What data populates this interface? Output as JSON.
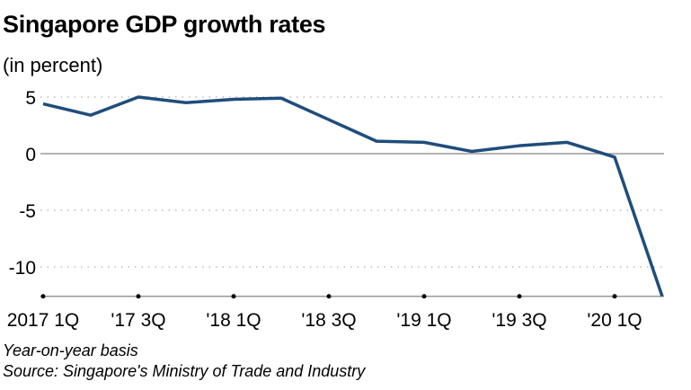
{
  "chart_data": {
    "type": "line",
    "title": "Singapore GDP growth rates",
    "subtitle": "(in percent)",
    "x": [
      "2017 1Q",
      "2017 2Q",
      "2017 3Q",
      "2017 4Q",
      "2018 1Q",
      "2018 2Q",
      "2018 3Q",
      "2018 4Q",
      "2019 1Q",
      "2019 2Q",
      "2019 3Q",
      "2019 4Q",
      "2020 1Q",
      "2020 2Q"
    ],
    "x_tick_labels": [
      "2017 1Q",
      "'17 3Q",
      "'18 1Q",
      "'18 3Q",
      "'19 1Q",
      "'19 3Q",
      "'20 1Q"
    ],
    "y_ticks": [
      5,
      0,
      -5,
      -10
    ],
    "ylim": [
      -12.6,
      5.5
    ],
    "grid": true,
    "series": [
      {
        "values": [
          4.4,
          3.4,
          5.0,
          4.5,
          4.8,
          4.9,
          3.0,
          1.1,
          1.0,
          0.2,
          0.7,
          1.0,
          -0.3,
          -12.6
        ],
        "color": "#1f4d7c"
      }
    ],
    "notes": [
      "Year-on-year basis",
      "Source: Singapore's Ministry of Trade and Industry"
    ]
  }
}
